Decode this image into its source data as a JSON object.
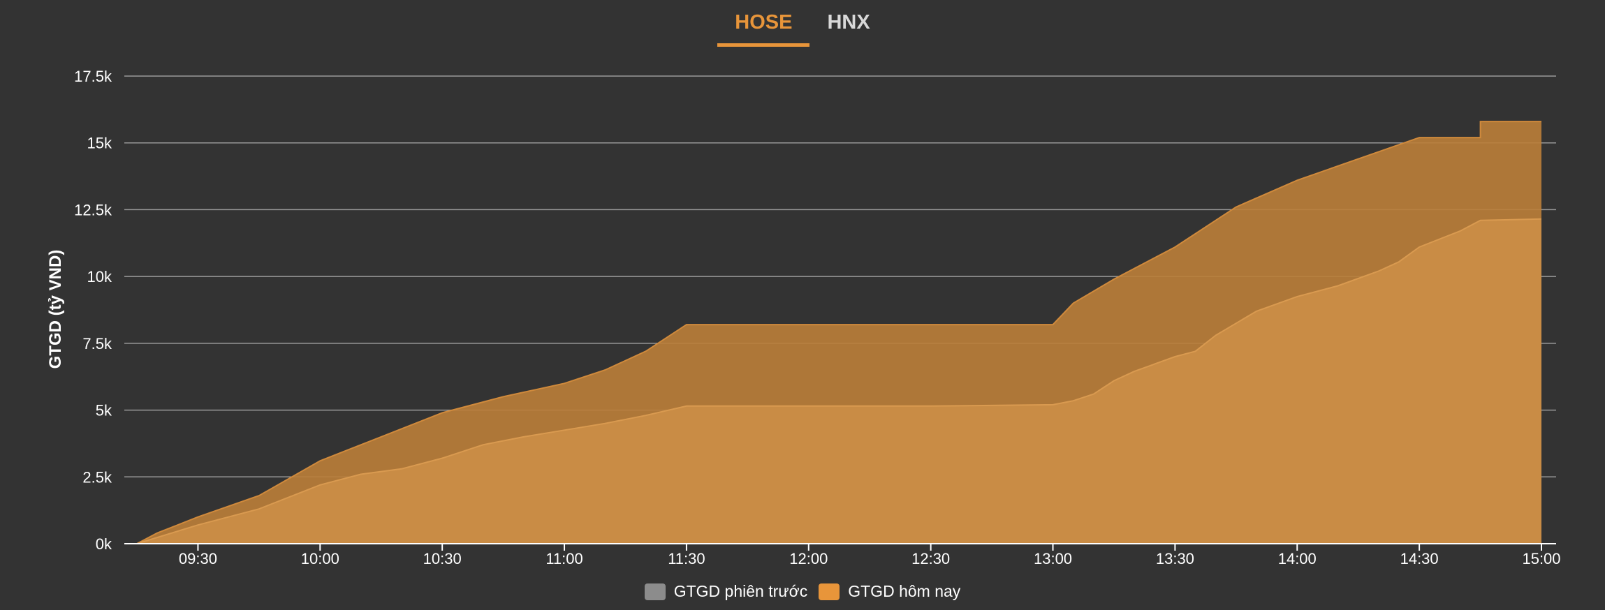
{
  "tabs": [
    {
      "label": "HOSE",
      "active": true
    },
    {
      "label": "HNX",
      "active": false
    }
  ],
  "legend": [
    {
      "label": "GTGD phiên trước",
      "color": "#8c8c8c"
    },
    {
      "label": "GTGD hôm nay",
      "color": "#e8953a"
    }
  ],
  "chart_data": {
    "type": "area",
    "title": "",
    "ylabel": "GTGD (tỷ VND)",
    "xlabel": "",
    "ylim": [
      0,
      17500
    ],
    "x_range": [
      "09:15",
      "15:00"
    ],
    "y_ticks": [
      0,
      2500,
      5000,
      7500,
      10000,
      12500,
      15000,
      17500
    ],
    "y_tick_labels": [
      "0k",
      "2.5k",
      "5k",
      "7.5k",
      "10k",
      "12.5k",
      "15k",
      "17.5k"
    ],
    "x_ticks": [
      "09:30",
      "10:00",
      "10:30",
      "11:00",
      "11:30",
      "12:00",
      "12:30",
      "13:00",
      "13:30",
      "14:00",
      "14:30",
      "15:00"
    ],
    "grid": true,
    "legend_position": "bottom",
    "series": [
      {
        "name": "GTGD phiên trước",
        "color": "#c98c45",
        "points": [
          [
            "09:15",
            0
          ],
          [
            "09:30",
            700
          ],
          [
            "09:45",
            1300
          ],
          [
            "10:00",
            2200
          ],
          [
            "10:10",
            2600
          ],
          [
            "10:20",
            2800
          ],
          [
            "10:30",
            3200
          ],
          [
            "10:40",
            3700
          ],
          [
            "10:50",
            4000
          ],
          [
            "11:00",
            4250
          ],
          [
            "11:10",
            4500
          ],
          [
            "11:20",
            4800
          ],
          [
            "11:30",
            5150
          ],
          [
            "12:00",
            5150
          ],
          [
            "12:30",
            5150
          ],
          [
            "13:00",
            5200
          ],
          [
            "13:05",
            5350
          ],
          [
            "13:10",
            5600
          ],
          [
            "13:15",
            6100
          ],
          [
            "13:20",
            6450
          ],
          [
            "13:30",
            7000
          ],
          [
            "13:35",
            7200
          ],
          [
            "13:40",
            7800
          ],
          [
            "13:50",
            8700
          ],
          [
            "14:00",
            9250
          ],
          [
            "14:10",
            9650
          ],
          [
            "14:20",
            10200
          ],
          [
            "14:25",
            10550
          ],
          [
            "14:30",
            11100
          ],
          [
            "14:40",
            11700
          ],
          [
            "14:45",
            12100
          ],
          [
            "15:00",
            12150
          ]
        ]
      },
      {
        "name": "GTGD hôm nay",
        "color": "#bb7e39",
        "points": [
          [
            "09:15",
            0
          ],
          [
            "09:20",
            400
          ],
          [
            "09:30",
            1000
          ],
          [
            "09:45",
            1800
          ],
          [
            "10:00",
            3100
          ],
          [
            "10:15",
            4000
          ],
          [
            "10:30",
            4900
          ],
          [
            "10:45",
            5500
          ],
          [
            "11:00",
            6000
          ],
          [
            "11:10",
            6500
          ],
          [
            "11:20",
            7200
          ],
          [
            "11:25",
            7700
          ],
          [
            "11:30",
            8200
          ],
          [
            "12:00",
            8200
          ],
          [
            "12:30",
            8200
          ],
          [
            "13:00",
            8200
          ],
          [
            "13:05",
            9000
          ],
          [
            "13:15",
            9900
          ],
          [
            "13:30",
            11100
          ],
          [
            "13:45",
            12600
          ],
          [
            "14:00",
            13600
          ],
          [
            "14:15",
            14400
          ],
          [
            "14:30",
            15200
          ],
          [
            "14:45",
            15200
          ],
          [
            "14:45",
            15800
          ],
          [
            "15:00",
            15800
          ]
        ]
      }
    ]
  }
}
